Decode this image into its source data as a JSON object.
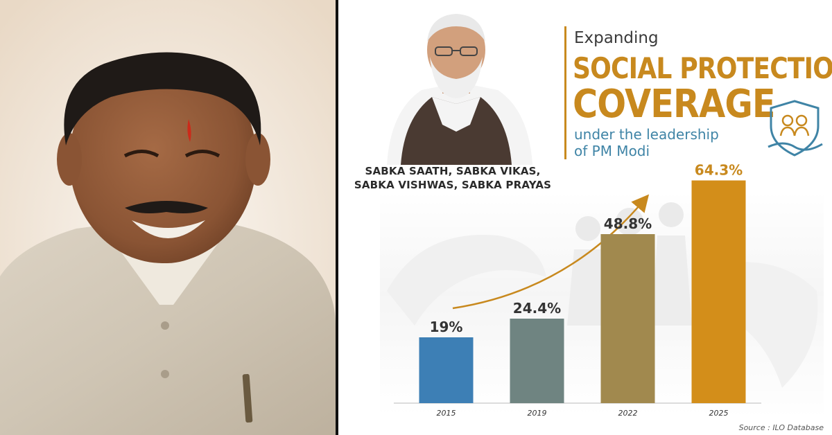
{
  "header": {
    "title_small": "Expanding",
    "title_line1": "SOCIAL PROTECTION",
    "title_line2": "COVERAGE",
    "subtitle_line1": "under the leadership",
    "subtitle_line2": "of PM Modi"
  },
  "slogan": {
    "line1": "SABKA SAATH, SABKA VIKAS,",
    "line2": "SABKA VISHWAS, SABKA PRAYAS"
  },
  "source": "Source : ILO Database",
  "colors": {
    "accent": "#c8891e",
    "subtitle": "#3f84a6",
    "bar_start": "#3d7fb5",
    "bar_end": "#d38e1a"
  },
  "chart_data": {
    "type": "bar",
    "categories": [
      "2015",
      "2019",
      "2022",
      "2025"
    ],
    "values": [
      19,
      24.4,
      48.8,
      64.3
    ],
    "value_labels": [
      "19%",
      "24.4%",
      "48.8%",
      "64.3%"
    ],
    "title": "",
    "xlabel": "",
    "ylabel": "",
    "ylim": [
      0,
      70
    ],
    "grid": false,
    "legend": "none"
  }
}
